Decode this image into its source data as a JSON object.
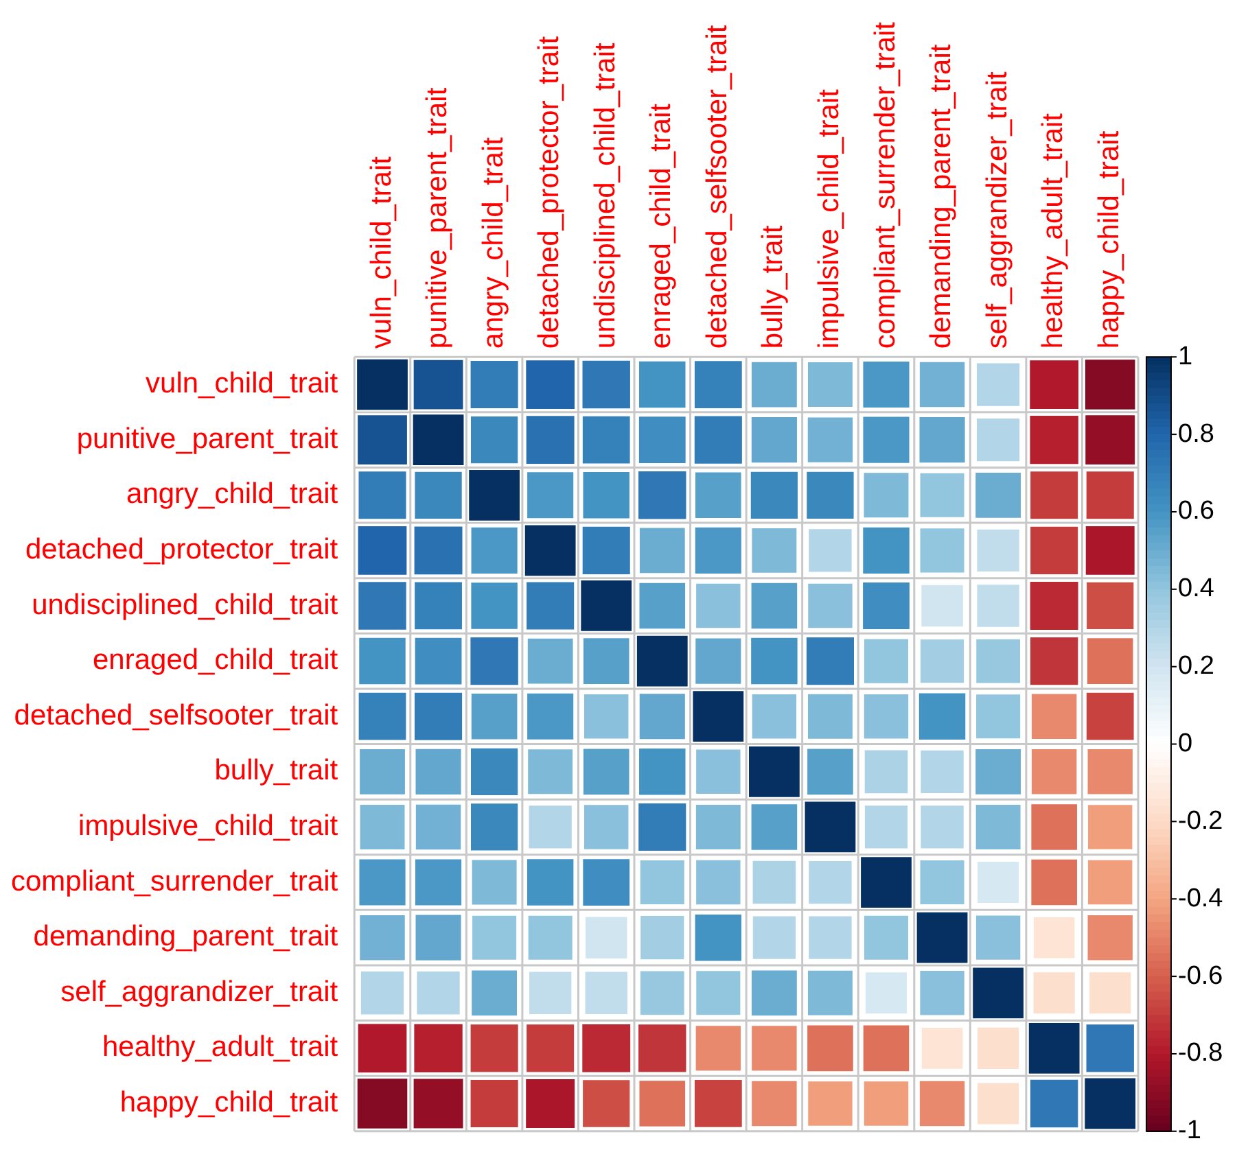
{
  "chart_data": {
    "type": "heatmap",
    "categories": [
      "vuln_child_trait",
      "punitive_parent_trait",
      "angry_child_trait",
      "detached_protector_trait",
      "undisciplined_child_trait",
      "enraged_child_trait",
      "detached_selfsooter_trait",
      "bully_trait",
      "impulsive_child_trait",
      "compliant_surrender_trait",
      "demanding_parent_trait",
      "self_aggrandizer_trait",
      "healthy_adult_trait",
      "happy_child_trait"
    ],
    "y_categories": [
      "vuln_child_trait",
      "punitive_parent_trait",
      "angry_child_trait",
      "detached_protector_trait",
      "undisciplined_child_trait",
      "enraged_child_trait",
      "detached_selfsooter_trait",
      "bully_trait",
      "impulsive_child_trait",
      "compliant_surrender_trait",
      "demanding_parent_trait",
      "self_aggrandizer_trait",
      "healthy_adult_trait",
      "happy_child_trait"
    ],
    "cells": [
      [
        1,
        0.87,
        0.7,
        0.8,
        0.72,
        0.6,
        0.68,
        0.5,
        0.45,
        0.58,
        0.48,
        0.3,
        -0.8,
        -0.92
      ],
      [
        0.87,
        1,
        0.65,
        0.75,
        0.68,
        0.62,
        0.7,
        0.52,
        0.48,
        0.58,
        0.52,
        0.3,
        -0.78,
        -0.88
      ],
      [
        0.7,
        0.65,
        1,
        0.58,
        0.6,
        0.72,
        0.55,
        0.65,
        0.65,
        0.45,
        0.4,
        0.5,
        -0.7,
        -0.7
      ],
      [
        0.8,
        0.75,
        0.58,
        1,
        0.7,
        0.5,
        0.58,
        0.45,
        0.3,
        0.6,
        0.4,
        0.25,
        -0.7,
        -0.82
      ],
      [
        0.72,
        0.68,
        0.6,
        0.7,
        1,
        0.55,
        0.42,
        0.55,
        0.42,
        0.62,
        0.2,
        0.25,
        -0.75,
        -0.65
      ],
      [
        0.6,
        0.62,
        0.72,
        0.5,
        0.55,
        1,
        0.52,
        0.6,
        0.7,
        0.4,
        0.35,
        0.38,
        -0.72,
        -0.55
      ],
      [
        0.68,
        0.7,
        0.55,
        0.58,
        0.42,
        0.52,
        1,
        0.42,
        0.45,
        0.42,
        0.6,
        0.4,
        -0.48,
        -0.68
      ],
      [
        0.5,
        0.52,
        0.65,
        0.45,
        0.55,
        0.6,
        0.42,
        1,
        0.55,
        0.32,
        0.3,
        0.5,
        -0.48,
        -0.48
      ],
      [
        0.45,
        0.48,
        0.65,
        0.3,
        0.42,
        0.7,
        0.45,
        0.55,
        1,
        0.3,
        0.3,
        0.45,
        -0.55,
        -0.42
      ],
      [
        0.58,
        0.58,
        0.45,
        0.6,
        0.62,
        0.4,
        0.42,
        0.32,
        0.3,
        1,
        0.4,
        0.18,
        -0.55,
        -0.42
      ],
      [
        0.48,
        0.52,
        0.4,
        0.4,
        0.2,
        0.35,
        0.6,
        0.3,
        0.3,
        0.4,
        1,
        0.42,
        -0.15,
        -0.48
      ],
      [
        0.3,
        0.3,
        0.5,
        0.25,
        0.25,
        0.38,
        0.4,
        0.5,
        0.45,
        0.18,
        0.42,
        1,
        -0.18,
        -0.18
      ],
      [
        -0.8,
        -0.78,
        -0.7,
        -0.7,
        -0.75,
        -0.72,
        -0.48,
        -0.48,
        -0.55,
        -0.55,
        -0.15,
        -0.18,
        1,
        0.72
      ],
      [
        -0.92,
        -0.88,
        -0.7,
        -0.82,
        -0.65,
        -0.55,
        -0.68,
        -0.48,
        -0.42,
        -0.42,
        -0.48,
        -0.18,
        0.72,
        1
      ]
    ],
    "clim": [
      -1,
      1
    ],
    "cticks": [
      1,
      0.8,
      0.6,
      0.4,
      0.2,
      0,
      -0.2,
      -0.4,
      -0.6,
      -0.8,
      -1
    ],
    "grid": true
  }
}
